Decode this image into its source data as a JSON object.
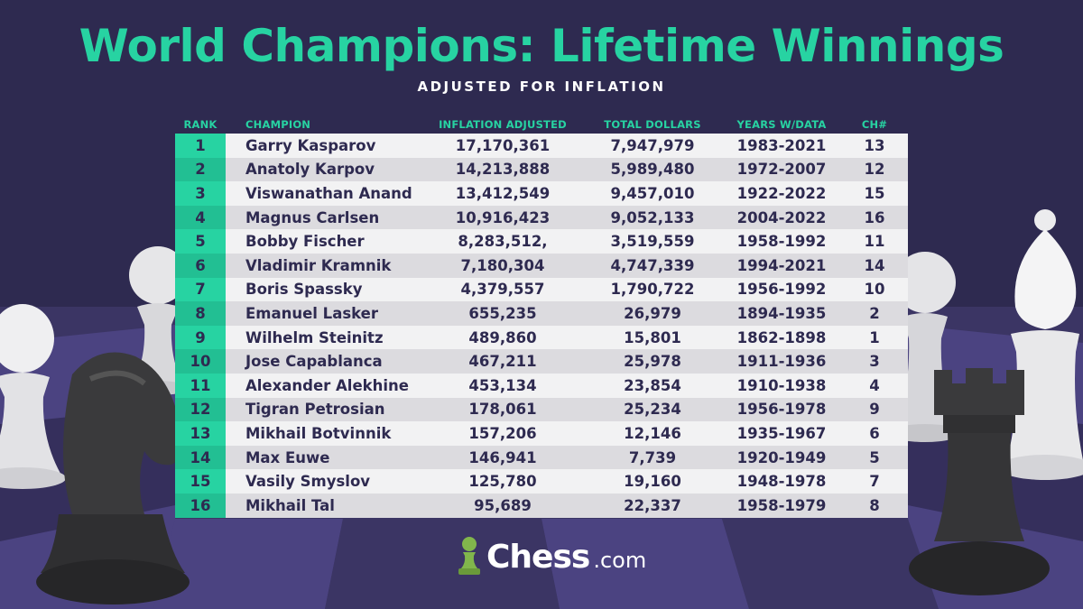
{
  "title": "World Champions: Lifetime Winnings",
  "subtitle": "ADJUSTED FOR INFLATION",
  "columns": {
    "rank": "RANK",
    "champion": "CHAMPION",
    "inflation": "INFLATION ADJUSTED",
    "total": "TOTAL DOLLARS",
    "years": "YEARS W/DATA",
    "ch": "CH#"
  },
  "rows": [
    {
      "rank": "1",
      "champion": "Garry Kasparov",
      "inflation": "17,170,361",
      "total": "7,947,979",
      "years": "1983-2021",
      "ch": "13"
    },
    {
      "rank": "2",
      "champion": "Anatoly Karpov",
      "inflation": "14,213,888",
      "total": "5,989,480",
      "years": "1972-2007",
      "ch": "12"
    },
    {
      "rank": "3",
      "champion": "Viswanathan Anand",
      "inflation": "13,412,549",
      "total": "9,457,010",
      "years": "1922-2022",
      "ch": "15"
    },
    {
      "rank": "4",
      "champion": "Magnus Carlsen",
      "inflation": "10,916,423",
      "total": "9,052,133",
      "years": "2004-2022",
      "ch": "16"
    },
    {
      "rank": "5",
      "champion": "Bobby Fischer",
      "inflation": "8,283,512,",
      "total": "3,519,559",
      "years": "1958-1992",
      "ch": "11"
    },
    {
      "rank": "6",
      "champion": "Vladimir Kramnik",
      "inflation": "7,180,304",
      "total": "4,747,339",
      "years": "1994-2021",
      "ch": "14"
    },
    {
      "rank": "7",
      "champion": "Boris Spassky",
      "inflation": "4,379,557",
      "total": "1,790,722",
      "years": "1956-1992",
      "ch": "10"
    },
    {
      "rank": "8",
      "champion": "Emanuel Lasker",
      "inflation": "655,235",
      "total": "26,979",
      "years": "1894-1935",
      "ch": "2"
    },
    {
      "rank": "9",
      "champion": "Wilhelm Steinitz",
      "inflation": "489,860",
      "total": "15,801",
      "years": "1862-1898",
      "ch": "1"
    },
    {
      "rank": "10",
      "champion": "Jose Capablanca",
      "inflation": "467,211",
      "total": "25,978",
      "years": "1911-1936",
      "ch": "3"
    },
    {
      "rank": "11",
      "champion": "Alexander Alekhine",
      "inflation": "453,134",
      "total": "23,854",
      "years": "1910-1938",
      "ch": "4"
    },
    {
      "rank": "12",
      "champion": "Tigran Petrosian",
      "inflation": "178,061",
      "total": "25,234",
      "years": "1956-1978",
      "ch": "9"
    },
    {
      "rank": "13",
      "champion": "Mikhail Botvinnik",
      "inflation": "157,206",
      "total": "12,146",
      "years": "1935-1967",
      "ch": "6"
    },
    {
      "rank": "14",
      "champion": "Max Euwe",
      "inflation": "146,941",
      "total": "7,739",
      "years": "1920-1949",
      "ch": "5"
    },
    {
      "rank": "15",
      "champion": "Vasily Smyslov",
      "inflation": "125,780",
      "total": "19,160",
      "years": "1948-1978",
      "ch": "7"
    },
    {
      "rank": "16",
      "champion": "Mikhail Tal",
      "inflation": "95,689",
      "total": "22,337",
      "years": "1958-1979",
      "ch": "8"
    }
  ],
  "logo": {
    "text": "Chess",
    "suffix": ".com",
    "icon": "pawn-icon"
  },
  "colors": {
    "background": "#2e2a50",
    "accent": "#27d3a2",
    "row_light": "#f2f2f3",
    "row_dark": "#dcdbdf",
    "text_dark": "#2e2a50",
    "logo_green": "#81b64c"
  }
}
